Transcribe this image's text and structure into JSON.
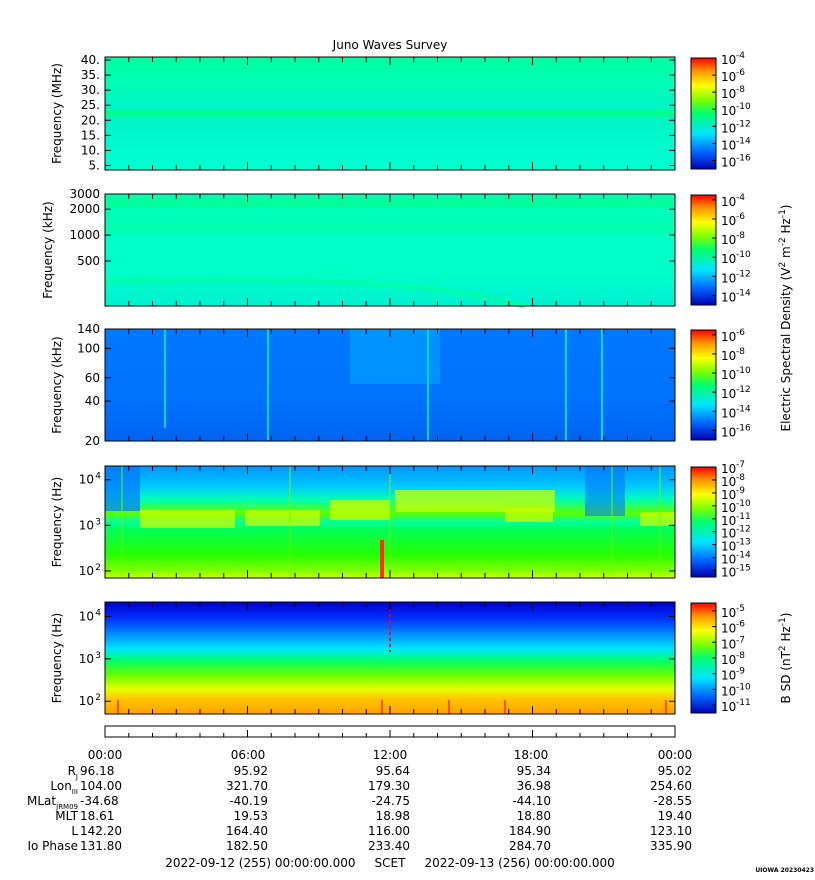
{
  "title": "Juno Waves Survey",
  "credit": "UIOWA 20230423",
  "colors": {
    "low": "#0000c8",
    "mid": "#00ff64",
    "high": "#ff0000"
  },
  "chart_data": [
    {
      "type": "heatmap",
      "ylabel": "Frequency (MHz)",
      "yscale": "linear",
      "ylim": [
        3.5,
        41
      ],
      "yticks": [
        {
          "v": 5,
          "label": "5."
        },
        {
          "v": 10,
          "label": "10."
        },
        {
          "v": 15,
          "label": "15."
        },
        {
          "v": 20,
          "label": "20."
        },
        {
          "v": 25,
          "label": "25."
        },
        {
          "v": 30,
          "label": "30."
        },
        {
          "v": 35,
          "label": "35."
        },
        {
          "v": 40,
          "label": "40."
        }
      ],
      "colorbar": {
        "labels": [
          "-4",
          "-6",
          "-8",
          "-10",
          "-12",
          "-14",
          "-16"
        ],
        "range": [
          -17,
          -4
        ]
      },
      "feature": "narrow enhanced band near 21 MHz"
    },
    {
      "type": "heatmap",
      "ylabel": "Frequency (kHz)",
      "yscale": "log",
      "ylim": [
        150,
        3000
      ],
      "yticks": [
        {
          "v": 500,
          "label": "500"
        },
        {
          "v": 1000,
          "label": "1000"
        },
        {
          "v": 2000,
          "label": "2000"
        },
        {
          "v": 3000,
          "label": "3000"
        }
      ],
      "colorbar": {
        "labels": [
          "-4",
          "-6",
          "-8",
          "-10",
          "-12",
          "-14"
        ],
        "range": [
          -15,
          -3.5
        ]
      },
      "shared_label": "Electric Spectral Density (V",
      "shared_label_tail": " m",
      "shared_label_units": "Hz",
      "feature": "bands near 1000 and 2000 kHz"
    },
    {
      "type": "heatmap",
      "ylabel": "Frequency (kHz)",
      "yscale": "log",
      "ylim": [
        20,
        140
      ],
      "yticks": [
        {
          "v": 20,
          "label": "20"
        },
        {
          "v": 40,
          "label": "40"
        },
        {
          "v": 60,
          "label": "60"
        },
        {
          "v": 100,
          "label": "100"
        },
        {
          "v": 140,
          "label": "140"
        }
      ],
      "colorbar": {
        "labels": [
          "-6",
          "-8",
          "-10",
          "-12",
          "-14",
          "-16"
        ],
        "range": [
          -17,
          -5.5
        ]
      },
      "feature": "weak background with vertical bursts"
    },
    {
      "type": "heatmap",
      "ylabel": "Frequency (Hz)",
      "yscale": "log",
      "ylim": [
        70,
        20000
      ],
      "yticks": [
        {
          "v": 100,
          "label": "10",
          "exp": "2"
        },
        {
          "v": 1000,
          "label": "10",
          "exp": "3"
        },
        {
          "v": 10000,
          "label": "10",
          "exp": "4"
        }
      ],
      "colorbar": {
        "labels": [
          "-7",
          "-8",
          "-9",
          "-10",
          "-11",
          "-12",
          "-13",
          "-14",
          "-15"
        ],
        "range": [
          -15.5,
          -7
        ]
      },
      "feature": "hiss band 1-10 kHz with cutoff near 1 kHz"
    },
    {
      "type": "heatmap",
      "ylabel": "Frequency (Hz)",
      "yscale": "log",
      "ylim": [
        50,
        22000
      ],
      "yticks": [
        {
          "v": 100,
          "label": "10",
          "exp": "2"
        },
        {
          "v": 1000,
          "label": "10",
          "exp": "3"
        },
        {
          "v": 10000,
          "label": "10",
          "exp": "4"
        }
      ],
      "colorbar": {
        "labels": [
          "-5",
          "-6",
          "-7",
          "-8",
          "-9",
          "-10",
          "-11"
        ],
        "range": [
          -11.5,
          -4.5
        ]
      },
      "cb_label": "B SD (nT",
      "cb_label_units": "Hz",
      "feature": "magnetic spectrum strong at low frequency"
    }
  ],
  "ephemeris": {
    "times": [
      "00:00",
      "06:00",
      "12:00",
      "18:00",
      "00:00"
    ],
    "rows": [
      {
        "label": "R",
        "sub": "J",
        "values": [
          "96.18",
          "95.92",
          "95.64",
          "95.34",
          "95.02"
        ]
      },
      {
        "label": "Lon",
        "sub": "III",
        "values": [
          "104.00",
          "321.70",
          "179.30",
          "36.98",
          "254.60"
        ]
      },
      {
        "label": "MLat",
        "sub": "JRM09",
        "values": [
          "-34.68",
          "-40.19",
          "-24.75",
          "-44.10",
          "-28.55"
        ]
      },
      {
        "label": "MLT",
        "sub": "",
        "values": [
          "18.61",
          "19.53",
          "18.98",
          "18.80",
          "19.40"
        ]
      },
      {
        "label": "L",
        "sub": "",
        "values": [
          "142.20",
          "164.40",
          "116.00",
          "184.90",
          "123.10"
        ]
      },
      {
        "label": "Io Phase",
        "sub": "",
        "values": [
          "131.80",
          "182.50",
          "233.40",
          "284.70",
          "335.90"
        ]
      }
    ],
    "footer": "2022-09-12 (255) 00:00:00.000     SCET     2022-09-13 (256) 00:00:00.000"
  }
}
